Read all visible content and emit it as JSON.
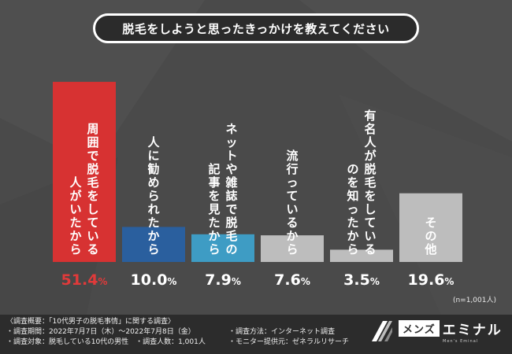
{
  "title": "脱毛をしようと思ったきっかけを教えてください",
  "sample_size": "(n=1,001人)",
  "chart_data": {
    "type": "bar",
    "title": "脱毛をしようと思ったきっかけを教えてください",
    "unit": "%",
    "ylim": [
      0,
      55
    ],
    "categories": [
      "周囲で脱毛をしている人がいたから",
      "人に勧められたから",
      "ネットや雑誌で脱毛の記事を見たから",
      "流行っているから",
      "有名人が脱毛をしているのを知ったから",
      "その他"
    ],
    "label_columns": [
      [
        "周囲で脱毛をしている",
        "人がいたから"
      ],
      [
        "人に勧められたから"
      ],
      [
        "ネットや雑誌で脱毛の",
        "記事を見たから"
      ],
      [
        "流行っているから"
      ],
      [
        "有名人が脱毛をしている",
        "のを知ったから"
      ],
      [
        "その他"
      ]
    ],
    "values": [
      51.4,
      10.0,
      7.9,
      7.6,
      3.5,
      19.6
    ],
    "value_labels": [
      "51.4%",
      "10.0%",
      "7.9%",
      "7.6%",
      "3.5%",
      "19.6%"
    ],
    "colors": [
      "#d73232",
      "#2a5f9e",
      "#3e9cc4",
      "#bdbdbd",
      "#bdbdbd",
      "#bdbdbd"
    ],
    "value_colors": [
      "#e03a3a",
      "#ffffff",
      "#ffffff",
      "#ffffff",
      "#ffffff",
      "#ffffff"
    ]
  },
  "footer": {
    "overview": "〈調査概要：「10代男子の脱毛事情」に関する調査〉",
    "period": "・調査期間：2022年7月7日（木）〜2022年7月8日（金）",
    "target": "・調査対象：脱毛している10代の男性",
    "count": "・調査人数：1,001人",
    "method": "・調査方法：インターネット調査",
    "provider": "・モニター提供元：ゼネラルリサーチ"
  },
  "logo": {
    "box_text": "メンズ",
    "word": "エミナル",
    "sub": "Men's Eminal"
  }
}
